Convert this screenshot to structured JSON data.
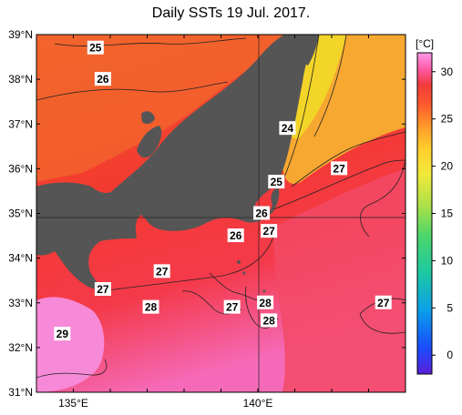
{
  "title": "Daily SSTs 19 Jul. 2017.",
  "lat_labels": [
    "39°N",
    "38°N",
    "37°N",
    "36°N",
    "35°N",
    "34°N",
    "33°N",
    "32°N",
    "31°N"
  ],
  "lon_labels": [
    "135°E",
    "140°E"
  ],
  "colorbar": {
    "unit_label": "[°C]",
    "tick_labels": [
      "30",
      "25",
      "20",
      "15",
      "10",
      "5",
      "0"
    ],
    "range": [
      -2,
      32
    ],
    "colors": [
      "#5a1fd8",
      "#1a4bff",
      "#0aa0e8",
      "#1fc9a0",
      "#4cd66b",
      "#a8e04a",
      "#f0e93a",
      "#ffcf2e",
      "#ff9a2a",
      "#ff5a2e",
      "#f03a3a",
      "#ff5aa8",
      "#ff9ae8"
    ]
  },
  "contour_labels": [
    {
      "text": "25",
      "lon": 135.6,
      "lat": 38.7
    },
    {
      "text": "26",
      "lon": 135.8,
      "lat": 38.0
    },
    {
      "text": "24",
      "lon": 140.8,
      "lat": 36.9
    },
    {
      "text": "27",
      "lon": 142.2,
      "lat": 36.0
    },
    {
      "text": "25",
      "lon": 140.5,
      "lat": 35.7
    },
    {
      "text": "26",
      "lon": 140.1,
      "lat": 35.0
    },
    {
      "text": "27",
      "lon": 140.3,
      "lat": 34.6
    },
    {
      "text": "26",
      "lon": 139.4,
      "lat": 34.5
    },
    {
      "text": "27",
      "lon": 137.4,
      "lat": 33.7
    },
    {
      "text": "27",
      "lon": 135.8,
      "lat": 33.3
    },
    {
      "text": "28",
      "lon": 137.1,
      "lat": 32.9
    },
    {
      "text": "28",
      "lon": 140.2,
      "lat": 33.0
    },
    {
      "text": "27",
      "lon": 139.3,
      "lat": 32.9
    },
    {
      "text": "28",
      "lon": 140.3,
      "lat": 32.6
    },
    {
      "text": "27",
      "lon": 143.4,
      "lat": 33.0
    },
    {
      "text": "29",
      "lon": 134.7,
      "lat": 32.3
    }
  ]
}
